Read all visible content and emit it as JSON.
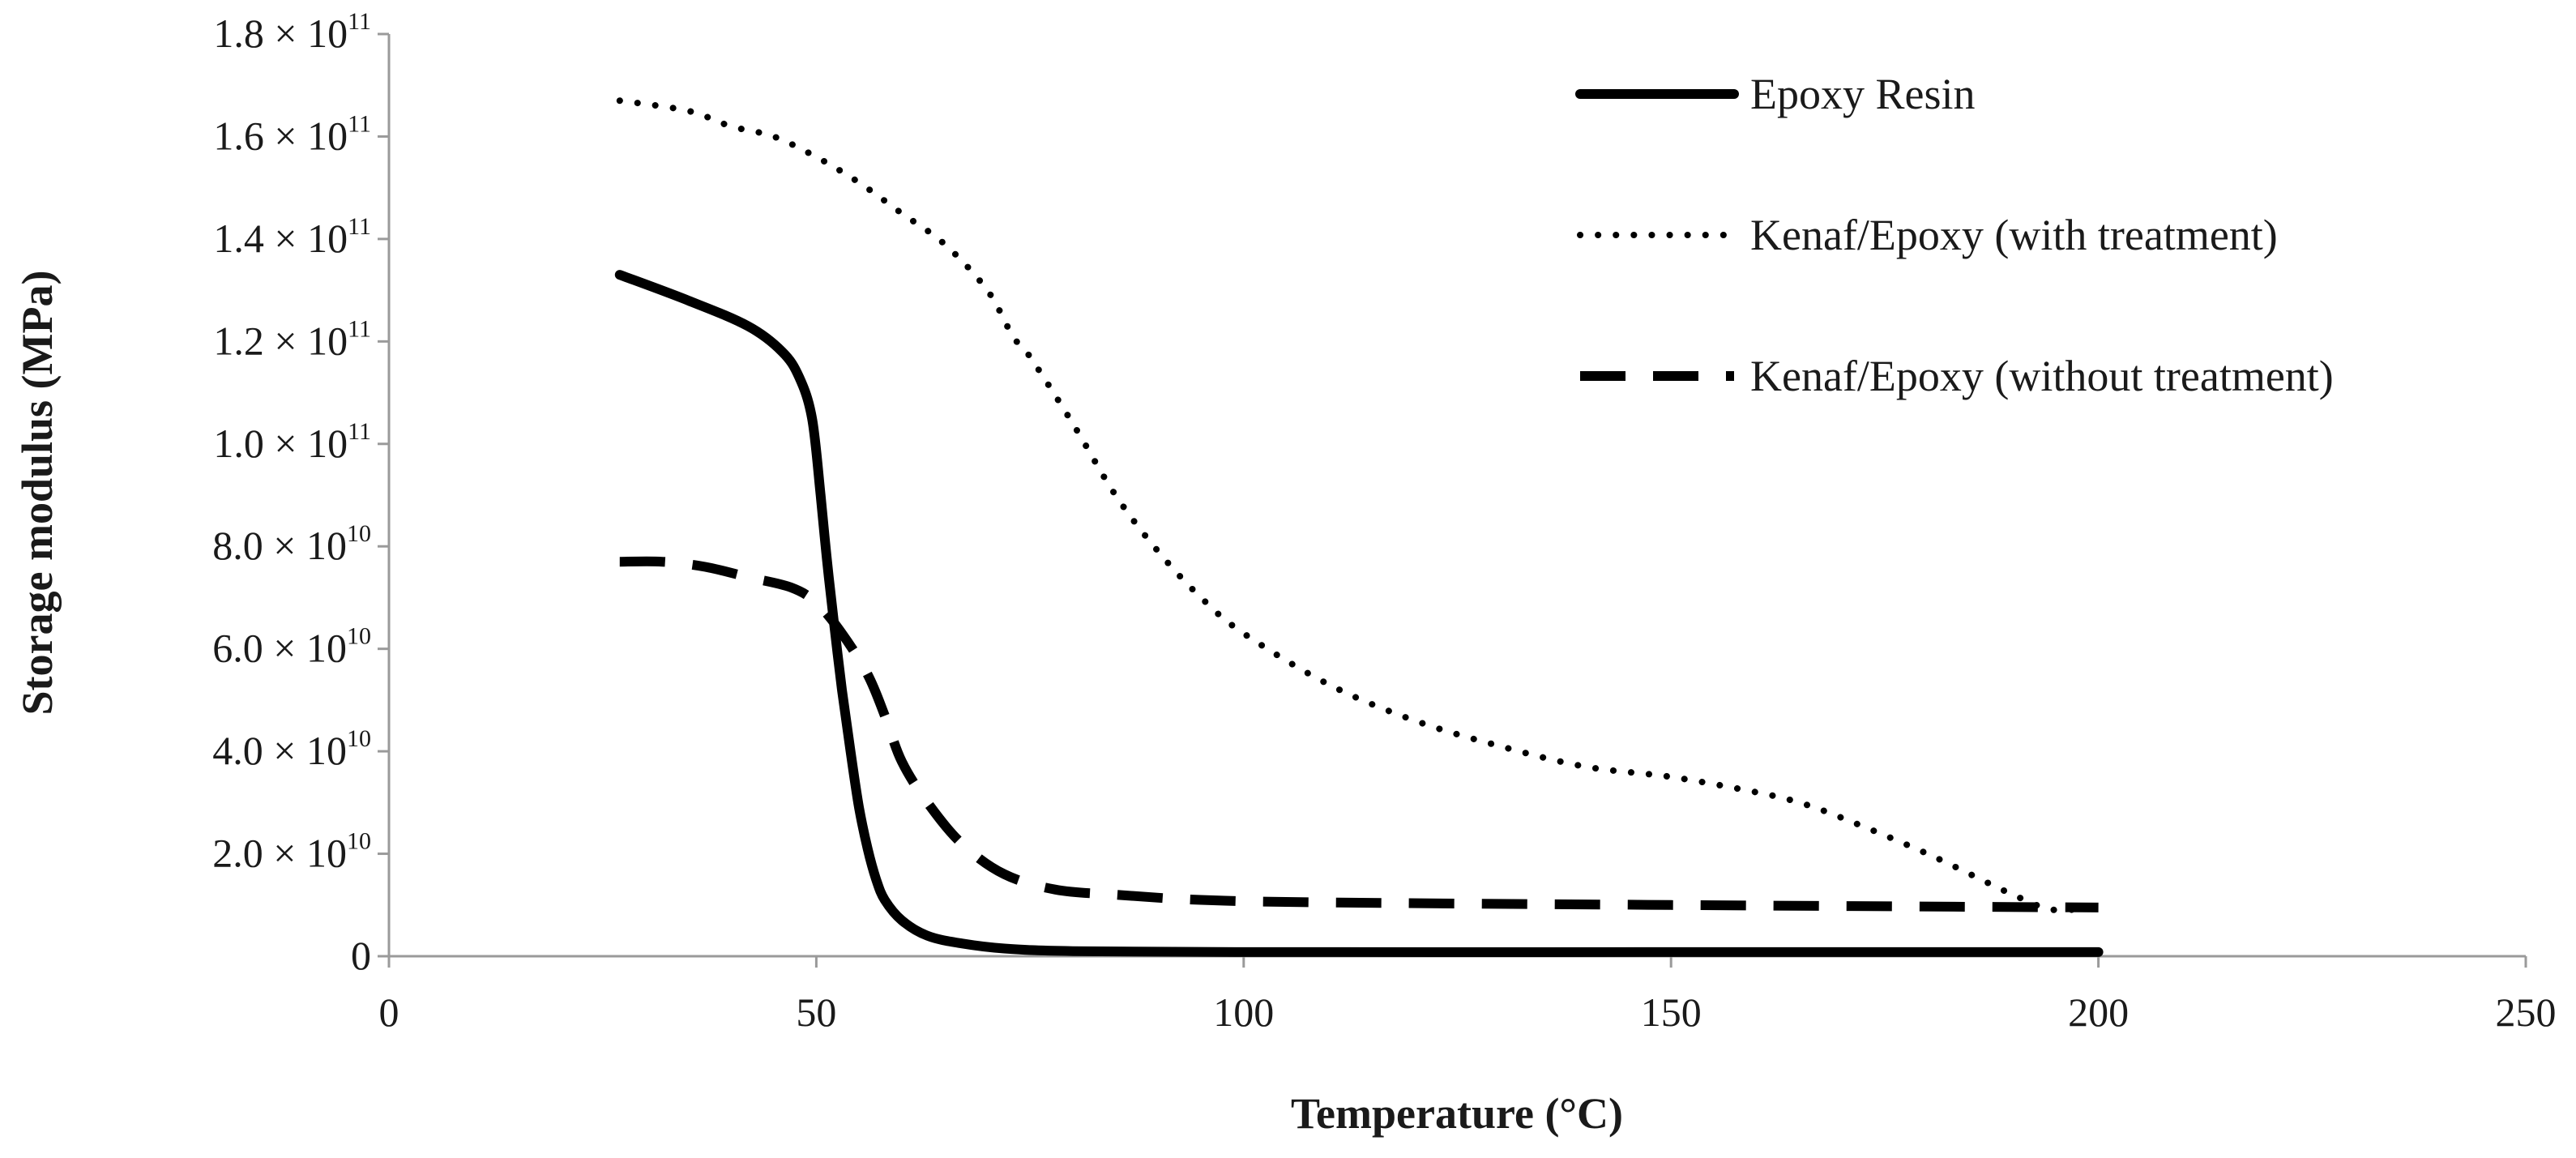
{
  "chart_data": {
    "type": "line",
    "title": "",
    "xlabel": "Temperature (°C)",
    "ylabel": "Storage modulus (MPa)",
    "xlim": [
      0,
      250
    ],
    "ylim": [
      0,
      180000000000
    ],
    "x_ticks": [
      "0",
      "50",
      "100",
      "150",
      "200",
      "250"
    ],
    "y_ticks": [
      {
        "value": 0,
        "mantissa": "0",
        "exponent": ""
      },
      {
        "value": 20000000000,
        "mantissa": "2.0 × 10",
        "exponent": "10"
      },
      {
        "value": 40000000000,
        "mantissa": "4.0 × 10",
        "exponent": "10"
      },
      {
        "value": 60000000000,
        "mantissa": "6.0 × 10",
        "exponent": "10"
      },
      {
        "value": 80000000000,
        "mantissa": "8.0 × 10",
        "exponent": "10"
      },
      {
        "value": 100000000000,
        "mantissa": "1.0 × 10",
        "exponent": "11"
      },
      {
        "value": 120000000000,
        "mantissa": "1.2 × 10",
        "exponent": "11"
      },
      {
        "value": 140000000000,
        "mantissa": "1.4 × 10",
        "exponent": "11"
      },
      {
        "value": 160000000000,
        "mantissa": "1.6 × 10",
        "exponent": "11"
      },
      {
        "value": 180000000000,
        "mantissa": "1.8 × 10",
        "exponent": "11"
      }
    ],
    "grid": false,
    "legend_position": "top-right",
    "series": [
      {
        "name": "Epoxy Resin",
        "style": "solid",
        "color": "#000000",
        "x": [
          27,
          35,
          42,
          46,
          48,
          49.5,
          50.5,
          51.2,
          52,
          53,
          54,
          55,
          56,
          57,
          58,
          60,
          63,
          67,
          72,
          80,
          100,
          150,
          200
        ],
        "y": [
          133000000000,
          128000000000,
          123000000000,
          118000000000,
          113000000000,
          105000000000,
          90000000000,
          78000000000,
          66000000000,
          52000000000,
          40000000000,
          29000000000,
          21000000000,
          15000000000,
          11000000000,
          7000000000,
          4000000000,
          2500000000,
          1500000000,
          1000000000,
          800000000,
          800000000,
          800000000
        ]
      },
      {
        "name": "Kenaf/Epoxy (with treatment)",
        "style": "dotted",
        "color": "#000000",
        "x": [
          27,
          35,
          40,
          45,
          50,
          55,
          60,
          65,
          70,
          73,
          75,
          80,
          85,
          90,
          95,
          100,
          110,
          120,
          130,
          140,
          150,
          160,
          165,
          170,
          180,
          190,
          195,
          200
        ],
        "y": [
          167000000000,
          165000000000,
          162000000000,
          160000000000,
          156000000000,
          151000000000,
          145000000000,
          139000000000,
          130000000000,
          121000000000,
          117000000000,
          104000000000,
          90000000000,
          79000000000,
          70000000000,
          63000000000,
          53000000000,
          46000000000,
          41000000000,
          37000000000,
          35000000000,
          32000000000,
          30000000000,
          27000000000,
          20000000000,
          12000000000,
          9000000000,
          10000000000
        ]
      },
      {
        "name": "Kenaf/Epoxy (without treatment)",
        "style": "dashed",
        "color": "#000000",
        "x": [
          27,
          32,
          37,
          42,
          47,
          50,
          53,
          56,
          58,
          60,
          63,
          67,
          72,
          78,
          85,
          95,
          110,
          150,
          200
        ],
        "y": [
          77000000000,
          77000000000,
          76000000000,
          74000000000,
          72000000000,
          69000000000,
          63000000000,
          55000000000,
          47000000000,
          38000000000,
          30000000000,
          22000000000,
          16000000000,
          13000000000,
          12000000000,
          11000000000,
          10500000000,
          10000000000,
          9500000000
        ]
      }
    ]
  }
}
